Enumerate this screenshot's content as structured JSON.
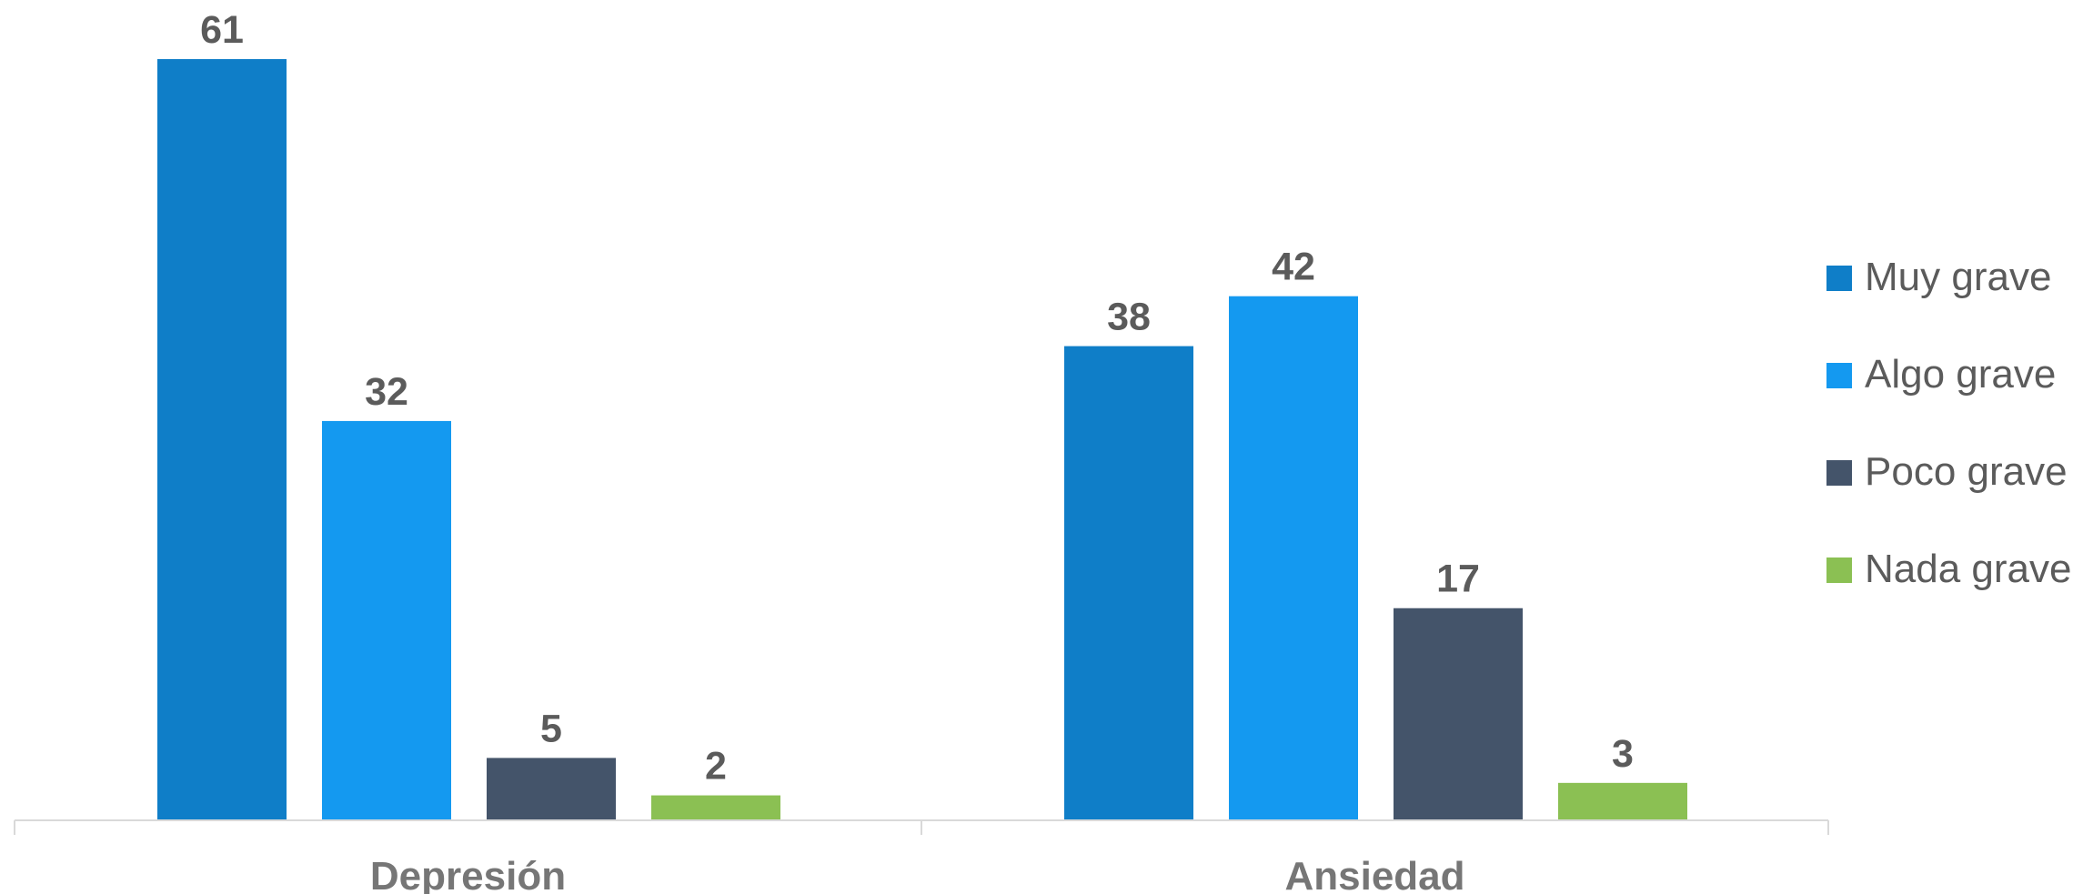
{
  "chart_data": {
    "type": "bar",
    "categories": [
      "Depresión",
      "Ansiedad"
    ],
    "series": [
      {
        "name": "Muy grave",
        "values": [
          61,
          38
        ],
        "color": "#0f7ec8"
      },
      {
        "name": "Algo grave",
        "values": [
          32,
          42
        ],
        "color": "#1499f0"
      },
      {
        "name": "Poco grave",
        "values": [
          5,
          17
        ],
        "color": "#44546a"
      },
      {
        "name": "Nada grave",
        "values": [
          2,
          3
        ],
        "color": "#8bc053"
      }
    ],
    "ylim": [
      0,
      61
    ],
    "grid": false,
    "legend_position": "right",
    "data_labels": true
  }
}
